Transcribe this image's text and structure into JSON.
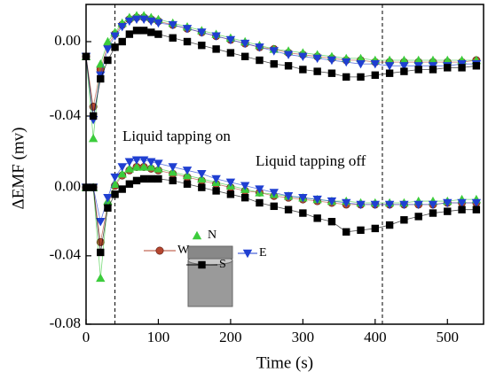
{
  "chart_data": [
    {
      "type": "scatter",
      "x": [
        0,
        10,
        20,
        30,
        40,
        50,
        60,
        70,
        80,
        90,
        100,
        120,
        140,
        160,
        180,
        200,
        220,
        240,
        260,
        280,
        300,
        320,
        340,
        360,
        380,
        400,
        420,
        440,
        460,
        480,
        500,
        520,
        540
      ],
      "xlim": [
        0,
        550
      ],
      "ylim": [
        -0.06,
        0.02
      ],
      "yticks": [
        {
          "value": 0.0,
          "label": "0.00"
        },
        {
          "value": -0.04,
          "label": "-0.04"
        }
      ],
      "vlines": [
        40,
        410
      ],
      "annotations": [
        {
          "text": "Liquid tapping on"
        }
      ],
      "series": [
        {
          "color": "#b5462f",
          "marker": "circle",
          "values": [
            -0.008,
            -0.035,
            -0.015,
            -0.002,
            0.004,
            0.009,
            0.012,
            0.013,
            0.013,
            0.012,
            0.011,
            0.009,
            0.007,
            0.005,
            0.003,
            0.001,
            -0.001,
            -0.003,
            -0.004,
            -0.006,
            -0.007,
            -0.008,
            -0.009,
            -0.01,
            -0.01,
            -0.011,
            -0.011,
            -0.011,
            -0.011,
            -0.011,
            -0.011,
            -0.011,
            -0.01
          ]
        },
        {
          "color": "#3ccc3c",
          "marker": "triangle-up",
          "values": [
            -0.008,
            -0.052,
            -0.012,
            0.0,
            0.005,
            0.01,
            0.013,
            0.014,
            0.014,
            0.013,
            0.012,
            0.01,
            0.008,
            0.006,
            0.004,
            0.002,
            0.0,
            -0.002,
            -0.004,
            -0.005,
            -0.006,
            -0.007,
            -0.008,
            -0.009,
            -0.009,
            -0.01,
            -0.01,
            -0.01,
            -0.01,
            -0.01,
            -0.01,
            -0.01,
            -0.01
          ]
        },
        {
          "color": "#1f3fd1",
          "marker": "triangle-down",
          "values": [
            -0.008,
            -0.042,
            -0.018,
            -0.004,
            0.003,
            0.008,
            0.011,
            0.012,
            0.012,
            0.011,
            0.01,
            0.009,
            0.007,
            0.005,
            0.003,
            0.001,
            -0.001,
            -0.003,
            -0.005,
            -0.007,
            -0.008,
            -0.009,
            -0.01,
            -0.011,
            -0.012,
            -0.012,
            -0.013,
            -0.013,
            -0.013,
            -0.013,
            -0.013,
            -0.012,
            -0.012
          ]
        },
        {
          "color": "#000000",
          "marker": "square",
          "values": [
            -0.008,
            -0.04,
            -0.02,
            -0.01,
            -0.003,
            0.0,
            0.004,
            0.006,
            0.006,
            0.005,
            0.004,
            0.002,
            0.0,
            -0.002,
            -0.004,
            -0.006,
            -0.008,
            -0.01,
            -0.012,
            -0.013,
            -0.015,
            -0.016,
            -0.017,
            -0.019,
            -0.019,
            -0.018,
            -0.017,
            -0.016,
            -0.015,
            -0.015,
            -0.014,
            -0.014,
            -0.013
          ]
        }
      ]
    },
    {
      "type": "scatter",
      "xlabel": "Time (s)",
      "ylabel": "ΔEMF (mv)",
      "x": [
        0,
        10,
        20,
        30,
        40,
        50,
        60,
        70,
        80,
        90,
        100,
        120,
        140,
        160,
        180,
        200,
        220,
        240,
        260,
        280,
        300,
        320,
        340,
        360,
        380,
        400,
        420,
        440,
        460,
        480,
        500,
        520,
        540
      ],
      "xlim": [
        0,
        550
      ],
      "xticks": [
        0,
        100,
        200,
        300,
        400,
        500
      ],
      "ylim": [
        -0.08,
        0.02
      ],
      "yticks": [
        {
          "value": 0.0,
          "label": "0.00"
        },
        {
          "value": -0.04,
          "label": "-0.04"
        },
        {
          "value": -0.08,
          "label": "-0.08"
        }
      ],
      "annotations": [
        {
          "text": "Liquid tapping off"
        }
      ],
      "series": [
        {
          "name": "W",
          "color": "#b5462f",
          "marker": "circle",
          "values": [
            0,
            0,
            -0.032,
            -0.01,
            0.001,
            0.007,
            0.01,
            0.012,
            0.012,
            0.011,
            0.01,
            0.008,
            0.006,
            0.004,
            0.002,
            0.0,
            -0.002,
            -0.003,
            -0.005,
            -0.006,
            -0.007,
            -0.008,
            -0.009,
            -0.01,
            -0.01,
            -0.01,
            -0.01,
            -0.01,
            -0.01,
            -0.01,
            -0.009,
            -0.009,
            -0.009
          ]
        },
        {
          "name": "N",
          "color": "#3ccc3c",
          "marker": "triangle-up",
          "values": [
            0,
            0,
            -0.053,
            -0.008,
            0.002,
            0.008,
            0.011,
            0.012,
            0.012,
            0.012,
            0.011,
            0.009,
            0.007,
            0.005,
            0.003,
            0.001,
            -0.001,
            -0.003,
            -0.004,
            -0.005,
            -0.006,
            -0.007,
            -0.008,
            -0.008,
            -0.009,
            -0.009,
            -0.009,
            -0.009,
            -0.008,
            -0.008,
            -0.008,
            -0.007,
            -0.007
          ]
        },
        {
          "name": "E",
          "color": "#1f3fd1",
          "marker": "triangle-down",
          "values": [
            0,
            0,
            -0.02,
            -0.006,
            0.006,
            0.012,
            0.015,
            0.016,
            0.016,
            0.015,
            0.014,
            0.012,
            0.01,
            0.008,
            0.005,
            0.003,
            0.001,
            -0.001,
            -0.003,
            -0.005,
            -0.006,
            -0.007,
            -0.008,
            -0.009,
            -0.01,
            -0.01,
            -0.01,
            -0.01,
            -0.01,
            -0.01,
            -0.009,
            -0.009,
            -0.009
          ]
        },
        {
          "name": "S",
          "color": "#000000",
          "marker": "square",
          "values": [
            0,
            0,
            -0.038,
            -0.012,
            -0.004,
            -0.001,
            0.002,
            0.004,
            0.005,
            0.005,
            0.005,
            0.004,
            0.002,
            0.0,
            -0.002,
            -0.004,
            -0.006,
            -0.009,
            -0.011,
            -0.013,
            -0.015,
            -0.018,
            -0.02,
            -0.026,
            -0.025,
            -0.024,
            -0.022,
            -0.019,
            -0.017,
            -0.015,
            -0.014,
            -0.013,
            -0.013
          ]
        }
      ]
    }
  ]
}
